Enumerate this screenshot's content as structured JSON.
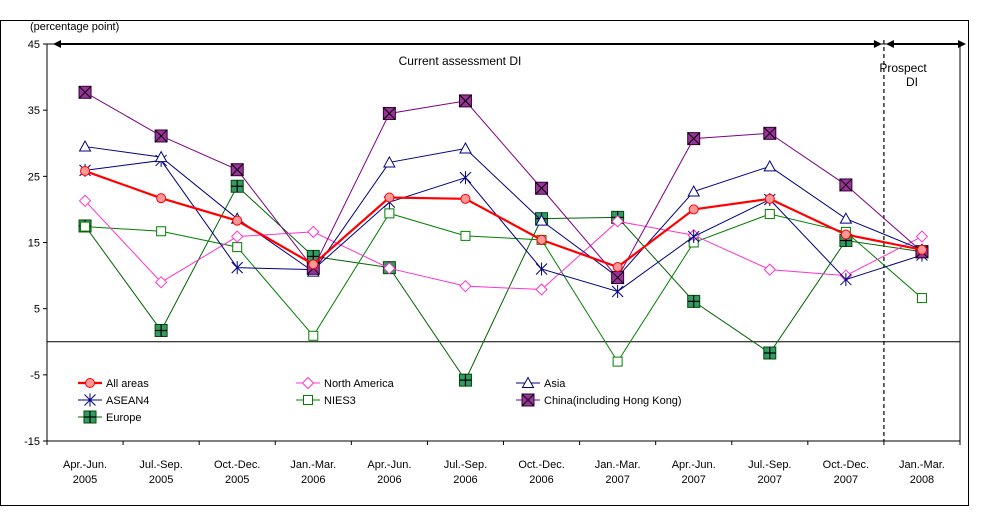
{
  "chart_data": {
    "type": "line",
    "ylabel": "(percentage point)",
    "ylim": [
      -15,
      45
    ],
    "yticks": [
      45,
      35,
      25,
      15,
      5,
      -5,
      -15
    ],
    "categories": [
      [
        "Apr.-Jun.",
        "2005"
      ],
      [
        "Jul.-Sep.",
        "2005"
      ],
      [
        "Oct.-Dec.",
        "2005"
      ],
      [
        "Jan.-Mar.",
        "2006"
      ],
      [
        "Apr.-Jun.",
        "2006"
      ],
      [
        "Jul.-Sep.",
        "2006"
      ],
      [
        "Oct.-Dec.",
        "2006"
      ],
      [
        "Jan.-Mar.",
        "2007"
      ],
      [
        "Apr.-Jun.",
        "2007"
      ],
      [
        "Jul.-Sep.",
        "2007"
      ],
      [
        "Oct.-Dec.",
        "2007"
      ],
      [
        "Jan.-Mar.",
        "2008"
      ]
    ],
    "annotations": {
      "current": "Current assessment DI",
      "prospect_line1": "Prospect",
      "prospect_line2": "DI"
    },
    "legend_position": "bottom-left",
    "grid": false,
    "series": [
      {
        "name": "All areas",
        "color": "#ff0000",
        "marker": "circle",
        "values": [
          25.8,
          21.7,
          18.3,
          11.7,
          21.8,
          21.6,
          15.4,
          11.3,
          20.0,
          21.6,
          16.2,
          13.9
        ]
      },
      {
        "name": "North America",
        "color": "#ff33cc",
        "marker": "diamond",
        "values": [
          21.3,
          9.0,
          15.9,
          16.6,
          11.1,
          8.4,
          7.9,
          18.2,
          16.1,
          10.9,
          10.0,
          15.9
        ]
      },
      {
        "name": "Asia",
        "color": "#000080",
        "marker": "triangle",
        "values": [
          29.5,
          27.9,
          18.6,
          10.6,
          27.1,
          29.2,
          18.3,
          9.8,
          22.7,
          26.5,
          18.6,
          13.9
        ]
      },
      {
        "name": "ASEAN4",
        "color": "#000080",
        "marker": "asterisk",
        "values": [
          25.9,
          27.4,
          11.2,
          10.9,
          21.1,
          24.8,
          11.0,
          7.6,
          15.9,
          21.5,
          9.4,
          13.1
        ]
      },
      {
        "name": "NIES3",
        "color": "#008000",
        "marker": "square",
        "values": [
          17.4,
          16.7,
          14.3,
          0.9,
          19.4,
          16.0,
          15.4,
          -3.0,
          15.0,
          19.3,
          16.6,
          6.6
        ]
      },
      {
        "name": "China(including Hong Kong)",
        "color": "#800080",
        "marker": "xsquare",
        "values": [
          37.7,
          31.1,
          26.0,
          11.1,
          34.5,
          36.4,
          23.2,
          9.7,
          30.7,
          31.5,
          23.7,
          13.6
        ]
      },
      {
        "name": "Europe",
        "color": "#006400",
        "marker": "plussquare",
        "values": [
          17.5,
          1.7,
          23.5,
          12.9,
          11.2,
          -5.8,
          18.6,
          18.8,
          6.1,
          -1.7,
          15.3,
          13.6
        ]
      }
    ]
  }
}
